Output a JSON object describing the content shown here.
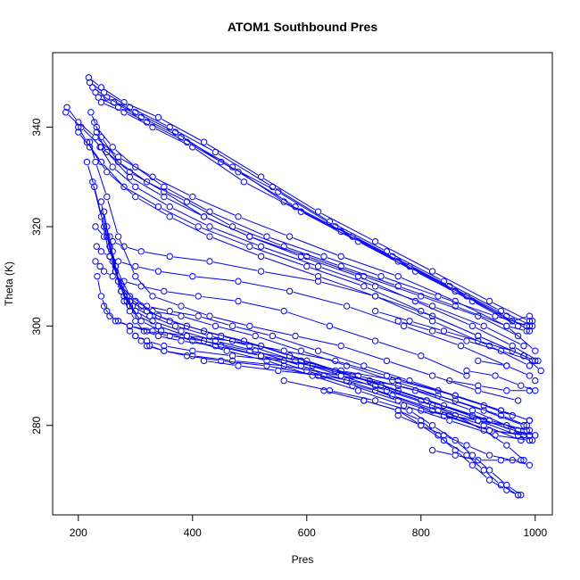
{
  "chart_data": {
    "type": "line",
    "title": "ATOM1 Southbound Pres",
    "xlabel": "Pres",
    "ylabel": "Theta (K)",
    "xlim": [
      155,
      1030
    ],
    "ylim": [
      262,
      355
    ],
    "xticks": [
      200,
      400,
      600,
      800,
      1000
    ],
    "yticks": [
      280,
      300,
      320,
      340
    ],
    "grid": false,
    "legend": "none",
    "color": "#0000ff",
    "marker": "open-circle",
    "series": [
      {
        "x": [
          218,
          240,
          280,
          340,
          420,
          520,
          620,
          720,
          820,
          920,
          990
        ],
        "y": [
          350,
          348,
          345,
          342,
          337,
          330,
          323,
          317,
          311,
          305,
          301
        ]
      },
      {
        "x": [
          220,
          245,
          290,
          360,
          440,
          540,
          640,
          740,
          840,
          940,
          995
        ],
        "y": [
          349,
          347,
          344,
          340,
          335,
          328,
          321,
          315,
          309,
          303,
          300
        ]
      },
      {
        "x": [
          225,
          250,
          300,
          370,
          450,
          550,
          650,
          750,
          850,
          950,
          990
        ],
        "y": [
          348,
          346,
          343,
          339,
          333,
          327,
          320,
          314,
          308,
          302,
          299
        ]
      },
      {
        "x": [
          230,
          262,
          310,
          380,
          470,
          560,
          660,
          760,
          860,
          960,
          985
        ],
        "y": [
          347,
          345,
          342,
          338,
          332,
          325,
          319,
          313,
          307,
          301,
          300
        ]
      },
      {
        "x": [
          235,
          270,
          320,
          390,
          480,
          580,
          680,
          780,
          880,
          960,
          990
        ],
        "y": [
          346,
          344,
          341,
          337,
          331,
          324,
          318,
          312,
          306,
          301,
          302
        ]
      },
      {
        "x": [
          240,
          280,
          330,
          400,
          490,
          590,
          690,
          790,
          890,
          970,
          995
        ],
        "y": [
          345,
          343,
          340,
          336,
          329,
          323,
          317,
          311,
          305,
          300,
          301
        ]
      },
      {
        "x": [
          222,
          232,
          260,
          300,
          350,
          430,
          530,
          630,
          730,
          830,
          930,
          990
        ],
        "y": [
          343,
          340,
          336,
          332,
          328,
          323,
          318,
          314,
          310,
          306,
          302,
          300
        ]
      },
      {
        "x": [
          228,
          240,
          270,
          320,
          390,
          470,
          560,
          660,
          760,
          860,
          950,
          985
        ],
        "y": [
          341,
          338,
          333,
          329,
          325,
          320,
          316,
          312,
          308,
          304,
          300,
          299
        ]
      },
      {
        "x": [
          232,
          250,
          290,
          350,
          420,
          500,
          600,
          700,
          800,
          900,
          970
        ],
        "y": [
          339,
          335,
          330,
          326,
          322,
          318,
          314,
          310,
          306,
          302,
          298
        ]
      },
      {
        "x": [
          238,
          260,
          300,
          360,
          430,
          520,
          620,
          720,
          820,
          910,
          980
        ],
        "y": [
          336,
          332,
          328,
          324,
          320,
          316,
          312,
          308,
          304,
          300,
          296
        ]
      },
      {
        "x": [
          180,
          200,
          230,
          270,
          330,
          400,
          480,
          570,
          660,
          760,
          860,
          950,
          1000
        ],
        "y": [
          344,
          341,
          338,
          334,
          330,
          326,
          322,
          318,
          314,
          310,
          305,
          300,
          295
        ]
      },
      {
        "x": [
          178,
          205,
          240,
          290,
          350,
          420,
          500,
          590,
          690,
          790,
          890,
          960,
          1005
        ],
        "y": [
          343,
          340,
          336,
          331,
          327,
          322,
          318,
          314,
          310,
          305,
          300,
          296,
          293
        ]
      },
      {
        "x": [
          200,
          215,
          240,
          280,
          340,
          410,
          500,
          600,
          700,
          800,
          900,
          980,
          1010
        ],
        "y": [
          340,
          337,
          333,
          328,
          324,
          320,
          316,
          312,
          308,
          303,
          298,
          294,
          291
        ]
      },
      {
        "x": [
          200,
          220,
          250,
          300,
          360,
          430,
          520,
          620,
          720,
          820,
          920,
          990
        ],
        "y": [
          339,
          336,
          331,
          326,
          322,
          318,
          314,
          310,
          306,
          301,
          296,
          292
        ]
      },
      {
        "x": [
          230,
          245,
          260,
          280,
          310,
          360,
          430,
          520,
          620,
          720,
          820,
          900,
          980
        ],
        "y": [
          320,
          318,
          317,
          316,
          315,
          314,
          313,
          311,
          309,
          306,
          302,
          298,
          294
        ]
      },
      {
        "x": [
          232,
          240,
          255,
          270,
          300,
          340,
          400,
          480,
          570,
          670,
          770,
          870,
          950
        ],
        "y": [
          316,
          315,
          314,
          313,
          312,
          311,
          310,
          309,
          307,
          304,
          300,
          296,
          292
        ]
      },
      {
        "x": [
          230,
          238,
          245,
          260,
          280,
          310,
          350,
          410,
          480,
          560,
          640,
          720,
          800,
          880
        ],
        "y": [
          313,
          312,
          311,
          310,
          309,
          308,
          307,
          306,
          305,
          303,
          300,
          297,
          294,
          290
        ]
      },
      {
        "x": [
          220,
          230,
          250,
          270,
          300,
          330,
          380,
          430,
          500,
          580,
          660,
          740,
          820,
          900,
          970
        ],
        "y": [
          337,
          333,
          326,
          318,
          310,
          306,
          304,
          302,
          300,
          298,
          296,
          293,
          290,
          287,
          285
        ]
      },
      {
        "x": [
          215,
          228,
          245,
          265,
          290,
          320,
          360,
          410,
          470,
          540,
          620,
          700,
          780,
          860,
          940,
          990
        ],
        "y": [
          333,
          328,
          320,
          312,
          306,
          304,
          303,
          302,
          300,
          298,
          295,
          292,
          289,
          286,
          283,
          281
        ]
      },
      {
        "x": [
          225,
          240,
          255,
          275,
          300,
          330,
          380,
          440,
          510,
          590,
          670,
          750,
          830,
          910,
          980
        ],
        "y": [
          329,
          322,
          314,
          308,
          305,
          303,
          302,
          300,
          298,
          295,
          292,
          289,
          286,
          283,
          280
        ]
      },
      {
        "x": [
          240,
          250,
          265,
          285,
          310,
          340,
          390,
          450,
          520,
          600,
          680,
          760,
          840,
          920,
          985
        ],
        "y": [
          325,
          318,
          311,
          306,
          304,
          302,
          300,
          298,
          296,
          293,
          290,
          287,
          284,
          281,
          279
        ]
      },
      {
        "x": [
          245,
          255,
          270,
          290,
          320,
          360,
          420,
          490,
          570,
          650,
          730,
          810,
          890,
          960,
          1000
        ],
        "y": [
          323,
          316,
          309,
          305,
          303,
          301,
          299,
          297,
          294,
          291,
          288,
          285,
          282,
          279,
          278
        ]
      },
      {
        "x": [
          250,
          260,
          275,
          295,
          325,
          370,
          430,
          500,
          580,
          660,
          740,
          820,
          900,
          970,
          995
        ],
        "y": [
          320,
          313,
          307,
          304,
          302,
          300,
          298,
          296,
          293,
          290,
          287,
          284,
          281,
          278,
          277
        ]
      },
      {
        "x": [
          255,
          265,
          280,
          300,
          330,
          380,
          440,
          510,
          590,
          670,
          750,
          830,
          910,
          975
        ],
        "y": [
          318,
          311,
          306,
          303,
          301,
          299,
          297,
          295,
          292,
          289,
          286,
          283,
          280,
          277
        ]
      },
      {
        "x": [
          260,
          270,
          285,
          305,
          340,
          390,
          450,
          520,
          600,
          680,
          760,
          840,
          920,
          980
        ],
        "y": [
          315,
          309,
          305,
          302,
          300,
          298,
          296,
          294,
          291,
          288,
          285,
          282,
          279,
          278
        ]
      },
      {
        "x": [
          265,
          275,
          290,
          310,
          345,
          400,
          460,
          530,
          610,
          690,
          770,
          850,
          930,
          990
        ],
        "y": [
          312,
          307,
          304,
          301,
          299,
          297,
          295,
          293,
          290,
          287,
          284,
          281,
          278,
          277
        ]
      },
      {
        "x": [
          233,
          240,
          250,
          265,
          290,
          330,
          390,
          470,
          560,
          650,
          740,
          830,
          910,
          960
        ],
        "y": [
          310,
          306,
          303,
          301,
          300,
          299,
          298,
          297,
          295,
          293,
          290,
          287,
          284,
          282
        ]
      },
      {
        "x": [
          245,
          255,
          270,
          290,
          320,
          360,
          420,
          500,
          590,
          690,
          790,
          890,
          970,
          990
        ],
        "y": [
          304,
          302,
          301,
          300,
          299,
          298,
          297,
          295,
          293,
          290,
          287,
          283,
          279,
          278
        ]
      },
      {
        "x": [
          280,
          290,
          300,
          315,
          340,
          380,
          440,
          520,
          610,
          710,
          810,
          910,
          990
        ],
        "y": [
          305,
          303,
          301,
          299,
          298,
          297,
          296,
          294,
          292,
          289,
          285,
          281,
          278
        ]
      },
      {
        "x": [
          290,
          300,
          310,
          325,
          350,
          390,
          450,
          530,
          620,
          720,
          820,
          920,
          990
        ],
        "y": [
          299,
          298,
          297,
          296,
          295,
          294,
          293,
          292,
          290,
          287,
          283,
          279,
          278
        ]
      },
      {
        "x": [
          300,
          320,
          350,
          400,
          470,
          560,
          660,
          760,
          860,
          940,
          990
        ],
        "y": [
          298,
          297,
          296,
          295,
          294,
          293,
          291,
          289,
          286,
          283,
          281
        ]
      },
      {
        "x": [
          320,
          350,
          400,
          470,
          560,
          660,
          760,
          860,
          940,
          985
        ],
        "y": [
          296,
          295,
          294,
          293,
          292,
          290,
          288,
          285,
          282,
          280
        ]
      },
      {
        "x": [
          420,
          480,
          550,
          630,
          720,
          800,
          860,
          910,
          950,
          980
        ],
        "y": [
          293,
          292,
          291,
          290,
          288,
          285,
          282,
          279,
          276,
          273
        ]
      },
      {
        "x": [
          560,
          640,
          720,
          780,
          820,
          860,
          890,
          920,
          950,
          975
        ],
        "y": [
          289,
          287,
          285,
          283,
          280,
          277,
          274,
          271,
          268,
          266
        ]
      },
      {
        "x": [
          630,
          700,
          760,
          800,
          840,
          880,
          910,
          940,
          970
        ],
        "y": [
          287,
          285,
          283,
          280,
          277,
          274,
          271,
          268,
          266
        ]
      },
      {
        "x": [
          700,
          760,
          800,
          830,
          860,
          890,
          920,
          950,
          970
        ],
        "y": [
          285,
          283,
          281,
          278,
          275,
          272,
          269,
          267,
          266
        ]
      },
      {
        "x": [
          760,
          800,
          840,
          880,
          920,
          960,
          990
        ],
        "y": [
          282,
          280,
          278,
          276,
          274,
          273,
          272
        ]
      },
      {
        "x": [
          820,
          860,
          900,
          940,
          975
        ],
        "y": [
          275,
          274,
          273,
          273,
          273
        ]
      },
      {
        "x": [
          800,
          850,
          900,
          950,
          990
        ],
        "y": [
          283,
          282,
          281,
          280,
          279
        ]
      },
      {
        "x": [
          850,
          900,
          950,
          990
        ],
        "y": [
          289,
          288,
          287,
          287
        ]
      },
      {
        "x": [
          880,
          930,
          975,
          1000
        ],
        "y": [
          291,
          290,
          288,
          287
        ]
      },
      {
        "x": [
          900,
          950,
          990,
          1000
        ],
        "y": [
          293,
          292,
          290,
          289
        ]
      },
      {
        "x": [
          760,
          820,
          880,
          940,
          995
        ],
        "y": [
          301,
          299,
          297,
          295,
          293
        ]
      },
      {
        "x": [
          720,
          780,
          840,
          900,
          960,
          1000
        ],
        "y": [
          303,
          301,
          299,
          297,
          295,
          293
        ]
      }
    ]
  }
}
